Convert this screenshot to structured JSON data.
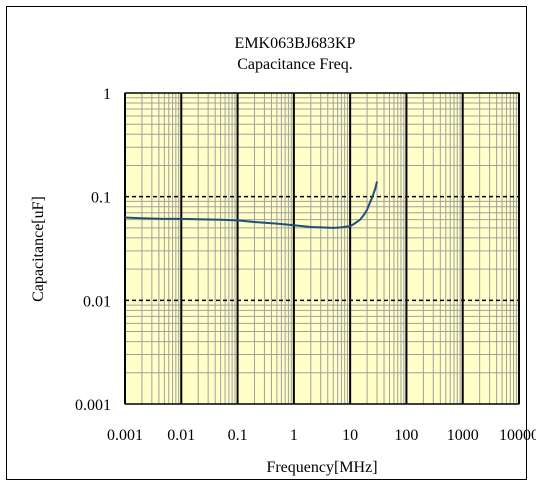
{
  "chart_data": {
    "type": "line",
    "title": "EMK063BJ683KP",
    "subtitle": "Capacitance Freq.",
    "xlabel": "Frequency[MHz]",
    "ylabel": "Capacitance[uF]",
    "x_scale": "log",
    "y_scale": "log",
    "xlim": [
      0.001,
      10000
    ],
    "ylim": [
      0.001,
      1
    ],
    "x_ticks": [
      "0.001",
      "0.01",
      "0.1",
      "1",
      "10",
      "100",
      "1000",
      "10000"
    ],
    "y_ticks": [
      "1",
      "0.1",
      "0.01",
      "0.001"
    ],
    "grid": true,
    "legend": "none",
    "colors": {
      "plot_background": "#ffffc8",
      "major_grid": "#000000",
      "minor_grid": "#a0a0a0",
      "series_line": "#1f4e79"
    },
    "series": [
      {
        "x": [
          0.001,
          0.002,
          0.005,
          0.01,
          0.02,
          0.05,
          0.1,
          0.2,
          0.5,
          1,
          2,
          3,
          5,
          7,
          10,
          12,
          15,
          18,
          20,
          22,
          25,
          28,
          30
        ],
        "values": [
          0.063,
          0.062,
          0.061,
          0.061,
          0.0605,
          0.06,
          0.059,
          0.057,
          0.055,
          0.053,
          0.051,
          0.0505,
          0.05,
          0.0505,
          0.052,
          0.055,
          0.06,
          0.068,
          0.075,
          0.085,
          0.1,
          0.12,
          0.14
        ]
      }
    ]
  }
}
